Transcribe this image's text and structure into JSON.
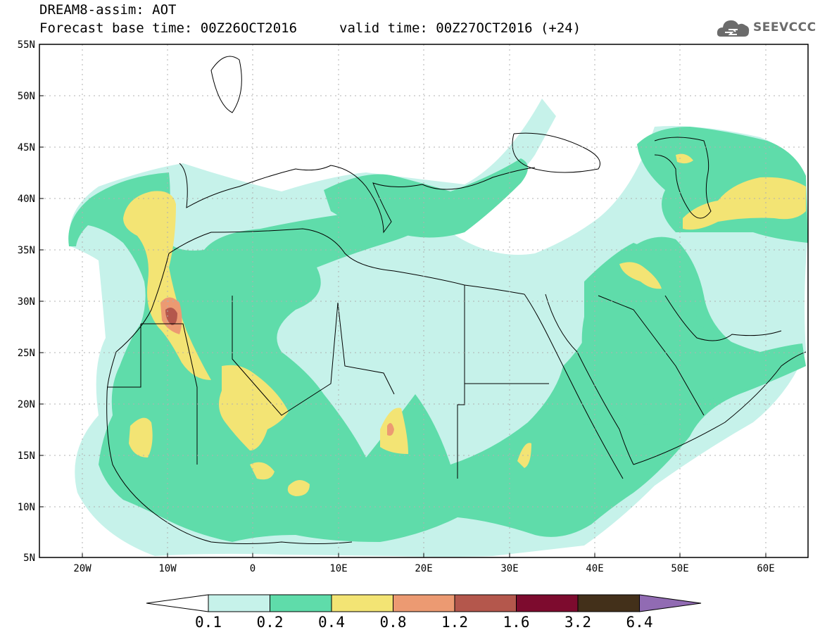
{
  "header": {
    "title": "DREAM8-assim: AOT",
    "base_time": "Forecast base time: 00Z26OCT2016",
    "valid_time": "valid time: 00Z27OCT2016 (+24)"
  },
  "logo": {
    "text": "SEEVCCC",
    "icon": "cloud-icon"
  },
  "map": {
    "lon_range": [
      -25,
      65
    ],
    "lat_range": [
      5,
      55
    ],
    "lat_labels": [
      "55N",
      "50N",
      "45N",
      "40N",
      "35N",
      "30N",
      "25N",
      "20N",
      "15N",
      "10N",
      "5N"
    ],
    "lon_labels": [
      "20W",
      "10W",
      "0",
      "10E",
      "20E",
      "30E",
      "40E",
      "50E",
      "60E"
    ],
    "colors": {
      "c01": "#c6f2ea",
      "c02": "#5fdcaa",
      "c04": "#f3e474",
      "c08": "#ec9a72",
      "c12": "#b4574c",
      "c16": "#7d0b2e",
      "c32": "#43301a",
      "c64": "#916bb3"
    }
  },
  "colorbar": {
    "labels": [
      "0.1",
      "0.2",
      "0.4",
      "0.8",
      "1.2",
      "1.6",
      "3.2",
      "6.4"
    ],
    "colors": [
      "#c6f2ea",
      "#5fdcaa",
      "#f3e474",
      "#ec9a72",
      "#b4574c",
      "#7d0b2e",
      "#43301a"
    ],
    "under_color": "#ffffff",
    "over_color": "#916bb3"
  }
}
